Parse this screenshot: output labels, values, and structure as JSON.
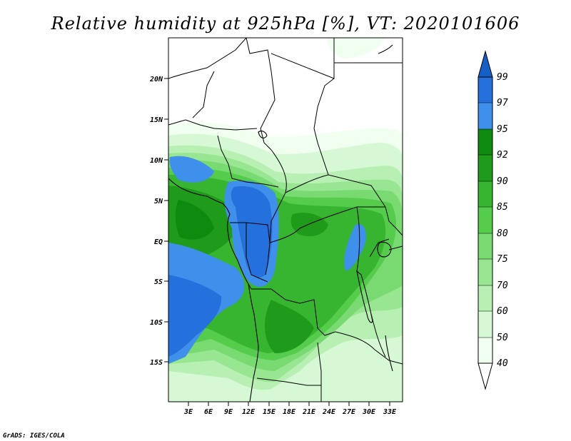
{
  "title": "Relative humidity at 925hPa [%], VT: 2020101606",
  "credit": "GrADS: IGES/COLA",
  "colors": {
    "c40": "#f0fff0",
    "c50": "#d6f8d4",
    "c60": "#b8f0b4",
    "c70": "#98e592",
    "c75": "#7ada72",
    "c80": "#55cc4c",
    "c85": "#38b530",
    "c90": "#1f9a1a",
    "c92": "#0e8a0e",
    "c95": "#3f90ea",
    "c97": "#2470dc",
    "c99": "#1560c8"
  },
  "map": {
    "lat_labels": [
      "20N",
      "15N",
      "10N",
      "5N",
      "EQ",
      "5S",
      "10S",
      "15S"
    ],
    "lon_labels": [
      "3E",
      "6E",
      "9E",
      "12E",
      "15E",
      "18E",
      "21E",
      "24E",
      "27E",
      "30E",
      "33E"
    ]
  },
  "colorbar": {
    "levels": [
      "99",
      "97",
      "95",
      "92",
      "90",
      "85",
      "80",
      "75",
      "70",
      "60",
      "50",
      "40"
    ]
  }
}
